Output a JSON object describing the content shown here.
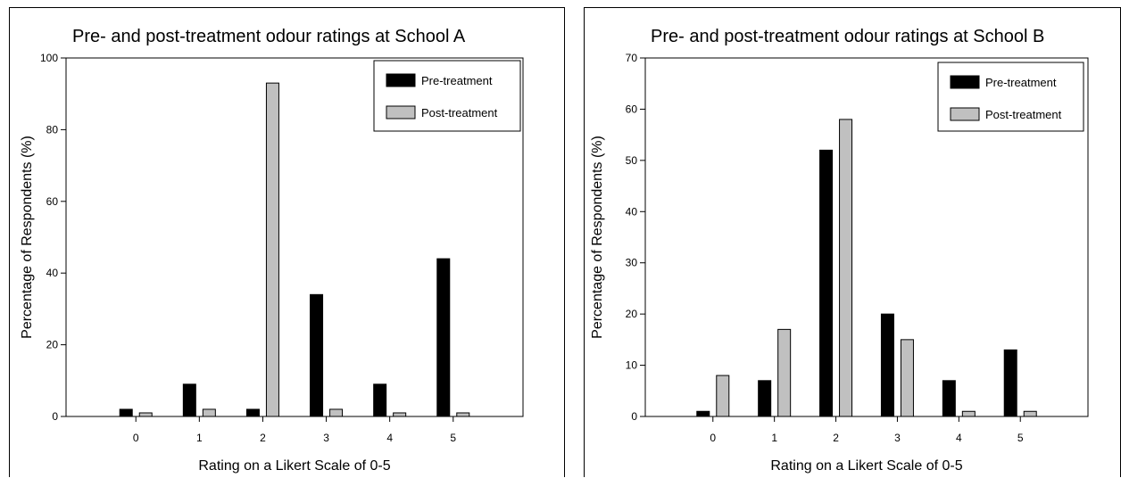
{
  "chart_data": [
    {
      "type": "bar",
      "title": "Pre- and post-treatment odour ratings at School A",
      "xlabel": "Rating on a Likert Scale of 0-5",
      "ylabel": "Percentage of Respondents (%)",
      "categories": [
        "0",
        "1",
        "2",
        "3",
        "4",
        "5"
      ],
      "ylim": [
        0,
        100
      ],
      "yticks": [
        0,
        20,
        40,
        60,
        80,
        100
      ],
      "legend_position": "top-right",
      "grid": false,
      "series": [
        {
          "name": "Pre-treatment",
          "color": "#000000",
          "values": [
            2,
            9,
            2,
            34,
            9,
            44
          ]
        },
        {
          "name": "Post-treatment",
          "color": "#c0c0c0",
          "values": [
            1,
            2,
            93,
            2,
            1,
            1
          ]
        }
      ]
    },
    {
      "type": "bar",
      "title": "Pre- and post-treatment odour ratings at School B",
      "xlabel": "Rating on a Likert Scale of 0-5",
      "ylabel": "Percentage of Respondents (%)",
      "categories": [
        "0",
        "1",
        "2",
        "3",
        "4",
        "5"
      ],
      "ylim": [
        0,
        70
      ],
      "yticks": [
        0,
        10,
        20,
        30,
        40,
        50,
        60,
        70
      ],
      "legend_position": "top-right",
      "grid": false,
      "series": [
        {
          "name": "Pre-treatment",
          "color": "#000000",
          "values": [
            1,
            7,
            52,
            20,
            7,
            13
          ]
        },
        {
          "name": "Post-treatment",
          "color": "#c0c0c0",
          "values": [
            8,
            17,
            58,
            15,
            1,
            1
          ]
        }
      ]
    }
  ]
}
